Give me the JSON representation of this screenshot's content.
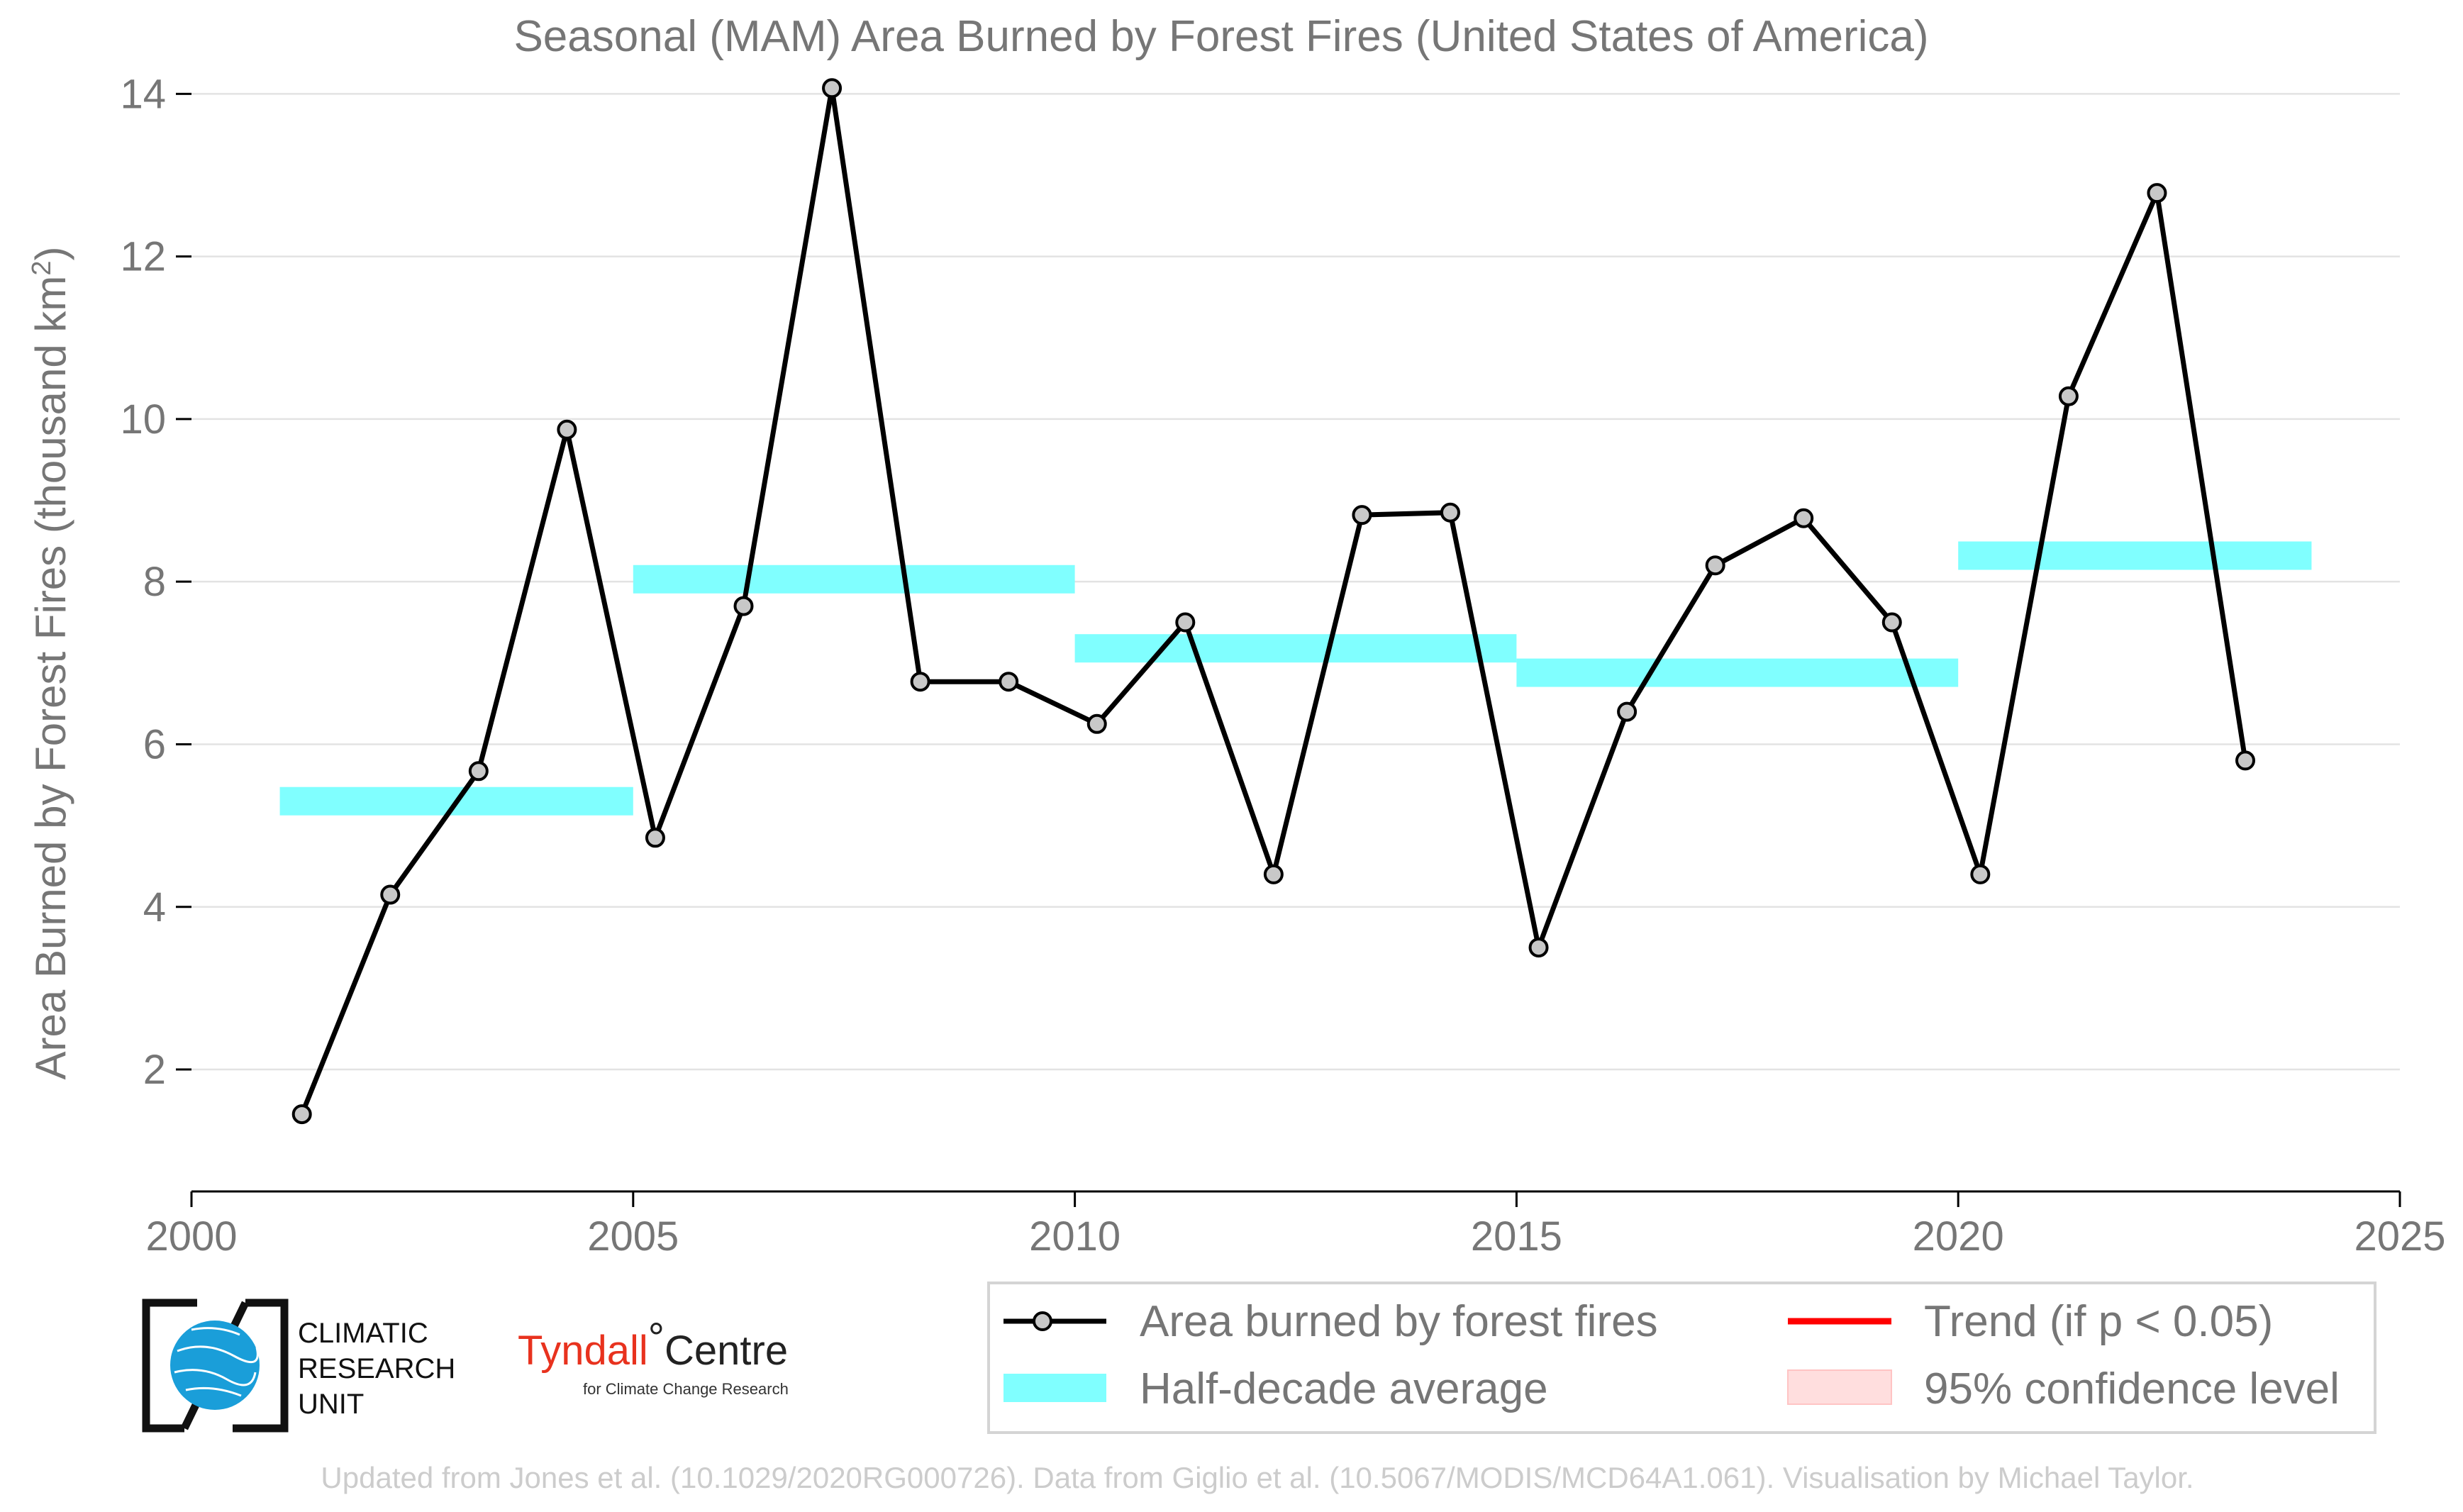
{
  "chart_data": {
    "type": "line",
    "title": "Seasonal (MAM) Area Burned by Forest Fires (United States of America)",
    "ylabel": "Area Burned by Forest Fires (thousand km",
    "ylabel_superscript": "2",
    "ylabel_close": ")",
    "xlim": [
      2000,
      2025
    ],
    "ylim": [
      0.5,
      14.5
    ],
    "xticks": [
      "2000",
      "2005",
      "2010",
      "2015",
      "2020",
      "2025"
    ],
    "yticks": [
      "2",
      "4",
      "6",
      "8",
      "10",
      "12",
      "14"
    ],
    "grid": "horizontal",
    "series": [
      {
        "name": "Area burned by forest fires",
        "color": "#000000",
        "x": [
          2001.25,
          2002.25,
          2003.25,
          2004.25,
          2005.25,
          2006.25,
          2007.25,
          2008.25,
          2009.25,
          2010.25,
          2011.25,
          2012.25,
          2013.25,
          2014.25,
          2015.25,
          2016.25,
          2017.25,
          2018.25,
          2019.25,
          2020.25,
          2021.25,
          2022.25,
          2023.25
        ],
        "values": [
          1.45,
          4.15,
          5.67,
          9.87,
          4.85,
          7.7,
          14.07,
          6.77,
          6.77,
          6.25,
          7.5,
          4.4,
          8.82,
          8.85,
          3.5,
          6.4,
          8.2,
          8.78,
          7.5,
          4.4,
          10.28,
          12.78,
          5.8
        ]
      }
    ],
    "half_decade_average": {
      "name": "Half-decade average",
      "color": "#80ffff",
      "segments": [
        {
          "x0": 2001,
          "x1": 2005,
          "value": 5.3
        },
        {
          "x0": 2005,
          "x1": 2010,
          "value": 8.03
        },
        {
          "x0": 2010,
          "x1": 2015,
          "value": 7.18
        },
        {
          "x0": 2015,
          "x1": 2020,
          "value": 6.88
        },
        {
          "x0": 2020,
          "x1": 2024,
          "value": 8.32
        }
      ]
    },
    "legend": {
      "placement": "bottom-right",
      "items": [
        {
          "label": "Area burned by forest fires",
          "kind": "line-marker",
          "color": "#000000"
        },
        {
          "label": "Trend (if p < 0.05)",
          "kind": "line",
          "color": "#ff0000"
        },
        {
          "label": "Half-decade average",
          "kind": "band",
          "color": "#80ffff"
        },
        {
          "label": "95% confidence level",
          "kind": "patch",
          "color": "#ffdede"
        }
      ]
    }
  },
  "logos": {
    "cru": {
      "line1": "CLIMATIC",
      "line2": "RESEARCH",
      "line3": "UNIT",
      "icon": "globe-icon"
    },
    "tyndall": {
      "main": "Tyndall",
      "degree": "°",
      "centre": "Centre",
      "sub": "for Climate Change Research"
    }
  },
  "footer": {
    "credit": "Updated from Jones et al. (10.1029/2020RG000726). Data from Giglio et al. (10.5067/MODIS/MCD64A1.061). Visualisation by Michael Taylor."
  }
}
